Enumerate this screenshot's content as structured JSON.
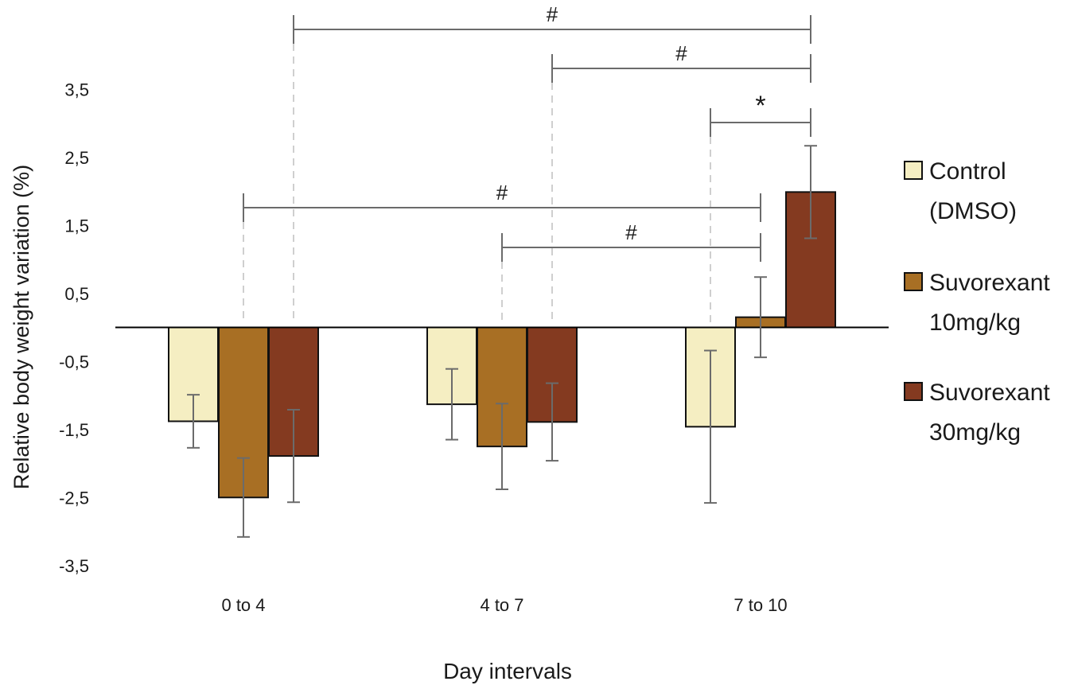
{
  "chart_data": {
    "type": "bar",
    "title": "",
    "xlabel": "Day intervals",
    "ylabel": "Relative body weight variation (%)",
    "ylim": [
      -3.5,
      3.5
    ],
    "yticks": [
      3.5,
      2.5,
      1.5,
      0.5,
      -0.5,
      -1.5,
      -2.5,
      -3.5
    ],
    "ytick_labels": [
      "3,5",
      "2,5",
      "1,5",
      "0,5",
      "-0,5",
      "-1,5",
      "-2,5",
      "-3,5"
    ],
    "categories": [
      "0 to 4",
      "4 to 7",
      "7 to 10"
    ],
    "grid": false,
    "legend_position": "right",
    "series": [
      {
        "name": "Control (DMSO)",
        "name_lines": [
          "Control",
          "(DMSO)"
        ],
        "color": "#F5EEC2",
        "values": [
          -1.38,
          -1.13,
          -1.46
        ],
        "errors": [
          0.39,
          0.52,
          1.12
        ]
      },
      {
        "name": "Suvorexant 10mg/kg",
        "name_lines": [
          "Suvorexant",
          "10mg/kg"
        ],
        "color": "#A86F24",
        "values": [
          -2.5,
          -1.75,
          0.15
        ],
        "errors": [
          0.58,
          0.63,
          0.59
        ]
      },
      {
        "name": "Suvorexant 30mg/kg",
        "name_lines": [
          "Suvorexant",
          "30mg/kg"
        ],
        "color": "#843A20",
        "values": [
          -1.89,
          -1.39,
          1.99
        ],
        "errors": [
          0.68,
          0.57,
          0.68
        ]
      }
    ],
    "significance": [
      {
        "from": {
          "category": 0,
          "series": 2
        },
        "to": {
          "category": 2,
          "series": 2
        },
        "label": "#"
      },
      {
        "from": {
          "category": 1,
          "series": 2
        },
        "to": {
          "category": 2,
          "series": 2
        },
        "label": "#"
      },
      {
        "from": {
          "category": 2,
          "series": 0
        },
        "to": {
          "category": 2,
          "series": 2
        },
        "label": "*"
      },
      {
        "from": {
          "category": 0,
          "series": 1
        },
        "to": {
          "category": 2,
          "series": 1
        },
        "label": "#"
      },
      {
        "from": {
          "category": 1,
          "series": 1
        },
        "to": {
          "category": 2,
          "series": 1
        },
        "label": "#"
      }
    ]
  }
}
